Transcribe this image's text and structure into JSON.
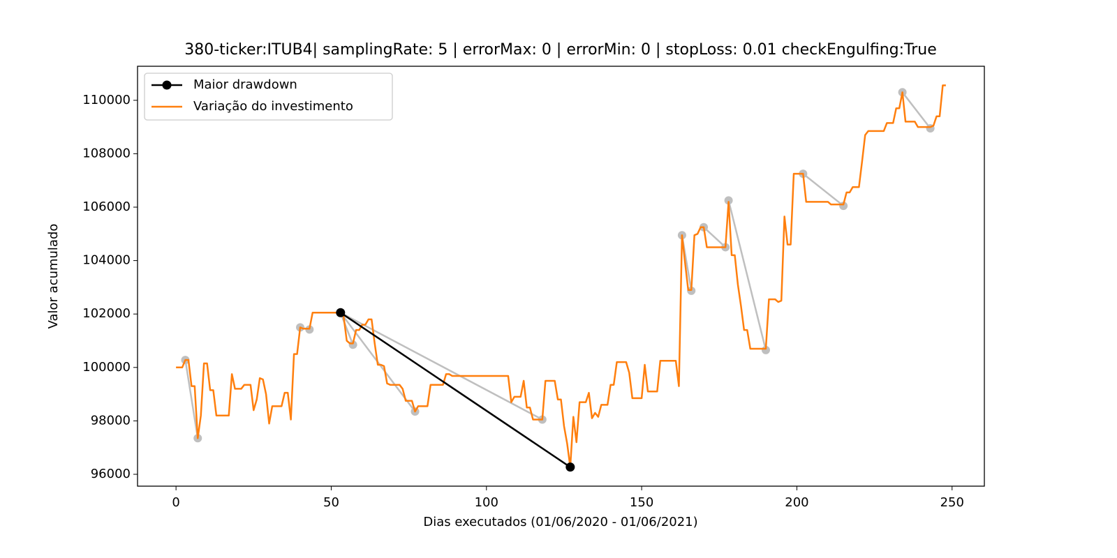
{
  "chart_data": {
    "type": "line",
    "title": "380-ticker:ITUB4| samplingRate: 5 | errorMax: 0 | errorMin: 0 | stopLoss: 0.01 checkEngulfing:True",
    "x_label": "Dias executados (01/06/2020 - 01/06/2021)",
    "y_label": "Valor acumulado",
    "xlim": [
      -12.4,
      260.4
    ],
    "ylim": [
      95556,
      111274
    ],
    "xticks": [
      0,
      50,
      100,
      150,
      200,
      250
    ],
    "yticks": [
      96000,
      98000,
      100000,
      102000,
      104000,
      106000,
      108000,
      110000
    ],
    "legend": "upper left",
    "drawdown_color": "#bfbfbf",
    "drawdowns": [
      {
        "x": [
          3,
          7
        ],
        "values": [
          100280,
          97350
        ]
      },
      {
        "x": [
          40,
          43
        ],
        "values": [
          101500,
          101420
        ]
      },
      {
        "x": [
          53,
          57
        ],
        "values": [
          102050,
          100850
        ]
      },
      {
        "x": [
          53,
          77
        ],
        "values": [
          102050,
          98350
        ]
      },
      {
        "x": [
          53,
          118
        ],
        "values": [
          102050,
          98050
        ]
      },
      {
        "x": [
          163,
          166
        ],
        "values": [
          104950,
          102870
        ]
      },
      {
        "x": [
          170,
          177
        ],
        "values": [
          105250,
          104500
        ]
      },
      {
        "x": [
          178,
          190
        ],
        "values": [
          106250,
          100650
        ]
      },
      {
        "x": [
          202,
          215
        ],
        "values": [
          107250,
          106050
        ]
      },
      {
        "x": [
          234,
          243
        ],
        "values": [
          110300,
          108950
        ]
      }
    ],
    "series": [
      {
        "name": "Maior drawdown",
        "color": "#000000",
        "markers": true,
        "x": [
          53,
          127
        ],
        "values": [
          102050,
          96270
        ]
      },
      {
        "name": "Variação do investimento",
        "color": "#ff7f0e",
        "markers": false,
        "x": [
          0,
          1,
          2,
          3,
          4,
          5,
          6,
          7,
          8,
          9,
          10,
          11,
          12,
          13,
          14,
          15,
          16,
          17,
          18,
          19,
          20,
          21,
          22,
          23,
          24,
          25,
          26,
          27,
          28,
          29,
          30,
          31,
          32,
          33,
          34,
          35,
          36,
          37,
          38,
          39,
          40,
          41,
          42,
          43,
          44,
          45,
          46,
          47,
          48,
          49,
          50,
          51,
          52,
          53,
          54,
          55,
          56,
          57,
          58,
          59,
          60,
          61,
          62,
          63,
          64,
          65,
          66,
          67,
          68,
          69,
          70,
          71,
          72,
          73,
          74,
          75,
          76,
          77,
          78,
          79,
          80,
          81,
          82,
          83,
          84,
          85,
          86,
          87,
          88,
          89,
          90,
          91,
          92,
          93,
          94,
          95,
          96,
          97,
          98,
          99,
          100,
          101,
          102,
          103,
          104,
          105,
          106,
          107,
          108,
          109,
          110,
          111,
          112,
          113,
          114,
          115,
          116,
          117,
          118,
          119,
          120,
          121,
          122,
          123,
          124,
          125,
          126,
          127,
          128,
          129,
          130,
          131,
          132,
          133,
          134,
          135,
          136,
          137,
          138,
          139,
          140,
          141,
          142,
          143,
          144,
          145,
          146,
          147,
          148,
          149,
          150,
          151,
          152,
          153,
          154,
          155,
          156,
          157,
          158,
          159,
          160,
          161,
          162,
          163,
          164,
          165,
          166,
          167,
          168,
          169,
          170,
          171,
          172,
          173,
          174,
          175,
          176,
          177,
          178,
          179,
          180,
          181,
          182,
          183,
          184,
          185,
          186,
          187,
          188,
          189,
          190,
          191,
          192,
          193,
          194,
          195,
          196,
          197,
          198,
          199,
          200,
          201,
          202,
          203,
          204,
          205,
          206,
          207,
          208,
          209,
          210,
          211,
          212,
          213,
          214,
          215,
          216,
          217,
          218,
          219,
          220,
          221,
          222,
          223,
          224,
          225,
          226,
          227,
          228,
          229,
          230,
          231,
          232,
          233,
          234,
          235,
          236,
          237,
          238,
          239,
          240,
          241,
          242,
          243,
          244,
          245,
          246,
          247,
          248
        ],
        "values": [
          100000,
          100000,
          100000,
          100280,
          100280,
          99300,
          99300,
          97350,
          98200,
          100150,
          100150,
          99150,
          99150,
          98200,
          98200,
          98200,
          98200,
          98200,
          99750,
          99200,
          99200,
          99200,
          99350,
          99350,
          99350,
          98400,
          98800,
          99600,
          99550,
          99000,
          97900,
          98550,
          98550,
          98550,
          98550,
          99050,
          99050,
          98050,
          100500,
          100500,
          101500,
          101450,
          101450,
          101450,
          102050,
          102050,
          102050,
          102050,
          102050,
          102050,
          102050,
          102050,
          102050,
          102050,
          101900,
          101000,
          100900,
          100900,
          101400,
          101400,
          101600,
          101600,
          101800,
          101800,
          100900,
          100100,
          100100,
          100050,
          99400,
          99350,
          99350,
          99350,
          99350,
          99200,
          98750,
          98750,
          98750,
          98350,
          98550,
          98550,
          98550,
          98550,
          99350,
          99350,
          99350,
          99350,
          99350,
          99750,
          99750,
          99680,
          99680,
          99680,
          99680,
          99680,
          99680,
          99680,
          99680,
          99680,
          99680,
          99680,
          99680,
          99680,
          99680,
          99680,
          99680,
          99680,
          99680,
          99680,
          98700,
          98900,
          98900,
          98900,
          99500,
          98500,
          98500,
          98050,
          98050,
          98050,
          98050,
          99500,
          99500,
          99500,
          99500,
          98800,
          98800,
          97800,
          97150,
          96270,
          98150,
          97200,
          98700,
          98700,
          98700,
          99050,
          98100,
          98300,
          98150,
          98600,
          98600,
          98600,
          99350,
          99350,
          100200,
          100200,
          100200,
          100200,
          99800,
          98850,
          98850,
          98850,
          98850,
          100100,
          99100,
          99100,
          99100,
          99100,
          100250,
          100250,
          100250,
          100250,
          100250,
          100250,
          99300,
          104950,
          103900,
          102900,
          102900,
          104950,
          105000,
          105250,
          105250,
          104500,
          104500,
          104500,
          104500,
          104500,
          104500,
          104500,
          106200,
          104200,
          104200,
          103100,
          102300,
          101400,
          101400,
          100700,
          100700,
          100700,
          100700,
          100700,
          100700,
          102550,
          102550,
          102550,
          102450,
          102500,
          105650,
          104600,
          104600,
          107250,
          107250,
          107250,
          107250,
          106200,
          106200,
          106200,
          106200,
          106200,
          106200,
          106200,
          106200,
          106100,
          106100,
          106100,
          106100,
          106100,
          106550,
          106550,
          106750,
          106750,
          106750,
          107700,
          108700,
          108850,
          108850,
          108850,
          108850,
          108850,
          108850,
          109150,
          109150,
          109150,
          109700,
          109700,
          110300,
          109200,
          109200,
          109200,
          109200,
          109000,
          109000,
          109000,
          109000,
          109000,
          109050,
          109400,
          109400,
          110560,
          110560
        ]
      }
    ]
  }
}
